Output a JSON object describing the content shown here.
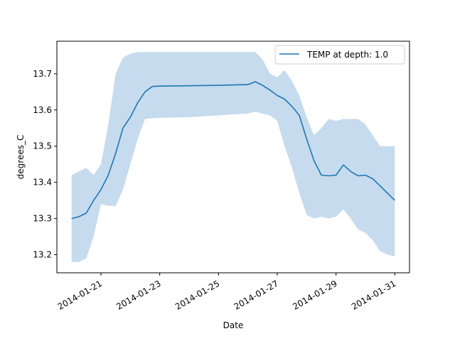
{
  "chart_data": {
    "type": "line",
    "title": "",
    "xlabel": "Date",
    "ylabel": "degrees_C",
    "x_tick_labels": [
      "2014-01-21",
      "2014-01-23",
      "2014-01-25",
      "2014-01-27",
      "2014-01-29",
      "2014-01-31"
    ],
    "y_tick_labels": [
      "13.2",
      "13.3",
      "13.4",
      "13.5",
      "13.6",
      "13.7"
    ],
    "ylim": [
      13.15,
      13.79
    ],
    "xlim": [
      "2014-01-19T12:00",
      "2014-01-31T12:00"
    ],
    "legend_position": "upper right",
    "grid": false,
    "colors": {
      "line": "#1f77b4",
      "band": "#c6dbed"
    },
    "series": [
      {
        "name": "TEMP at depth: 1.0",
        "x": [
          "2014-01-20T00:00",
          "2014-01-20T06:00",
          "2014-01-20T12:00",
          "2014-01-20T18:00",
          "2014-01-21T00:00",
          "2014-01-21T06:00",
          "2014-01-21T12:00",
          "2014-01-21T18:00",
          "2014-01-22T00:00",
          "2014-01-22T06:00",
          "2014-01-22T12:00",
          "2014-01-22T18:00",
          "2014-01-23T00:00",
          "2014-01-24T00:00",
          "2014-01-25T00:00",
          "2014-01-26T00:00",
          "2014-01-26T06:00",
          "2014-01-26T12:00",
          "2014-01-26T18:00",
          "2014-01-27T00:00",
          "2014-01-27T06:00",
          "2014-01-27T12:00",
          "2014-01-27T18:00",
          "2014-01-28T00:00",
          "2014-01-28T06:00",
          "2014-01-28T12:00",
          "2014-01-28T18:00",
          "2014-01-29T00:00",
          "2014-01-29T06:00",
          "2014-01-29T12:00",
          "2014-01-29T18:00",
          "2014-01-30T00:00",
          "2014-01-30T06:00",
          "2014-01-30T12:00",
          "2014-01-30T18:00",
          "2014-01-31T00:00"
        ],
        "y": [
          13.3,
          13.305,
          13.315,
          13.35,
          13.38,
          13.42,
          13.48,
          13.55,
          13.58,
          13.62,
          13.65,
          13.665,
          13.666,
          13.667,
          13.668,
          13.67,
          13.678,
          13.668,
          13.655,
          13.64,
          13.63,
          13.61,
          13.585,
          13.52,
          13.46,
          13.42,
          13.418,
          13.42,
          13.448,
          13.43,
          13.418,
          13.42,
          13.41,
          13.39,
          13.37,
          13.35
        ],
        "band_upper": [
          13.42,
          13.43,
          13.44,
          13.42,
          13.45,
          13.56,
          13.7,
          13.745,
          13.755,
          13.76,
          13.76,
          13.76,
          13.76,
          13.76,
          13.76,
          13.76,
          13.76,
          13.74,
          13.7,
          13.69,
          13.71,
          13.68,
          13.64,
          13.58,
          13.53,
          13.55,
          13.575,
          13.57,
          13.575,
          13.575,
          13.575,
          13.56,
          13.53,
          13.5,
          13.5,
          13.5
        ],
        "band_lower": [
          13.18,
          13.18,
          13.19,
          13.25,
          13.34,
          13.335,
          13.335,
          13.38,
          13.45,
          13.52,
          13.575,
          13.577,
          13.578,
          13.58,
          13.585,
          13.59,
          13.595,
          13.59,
          13.585,
          13.57,
          13.5,
          13.44,
          13.37,
          13.31,
          13.3,
          13.305,
          13.3,
          13.305,
          13.325,
          13.3,
          13.27,
          13.26,
          13.24,
          13.21,
          13.2,
          13.195
        ]
      }
    ]
  }
}
